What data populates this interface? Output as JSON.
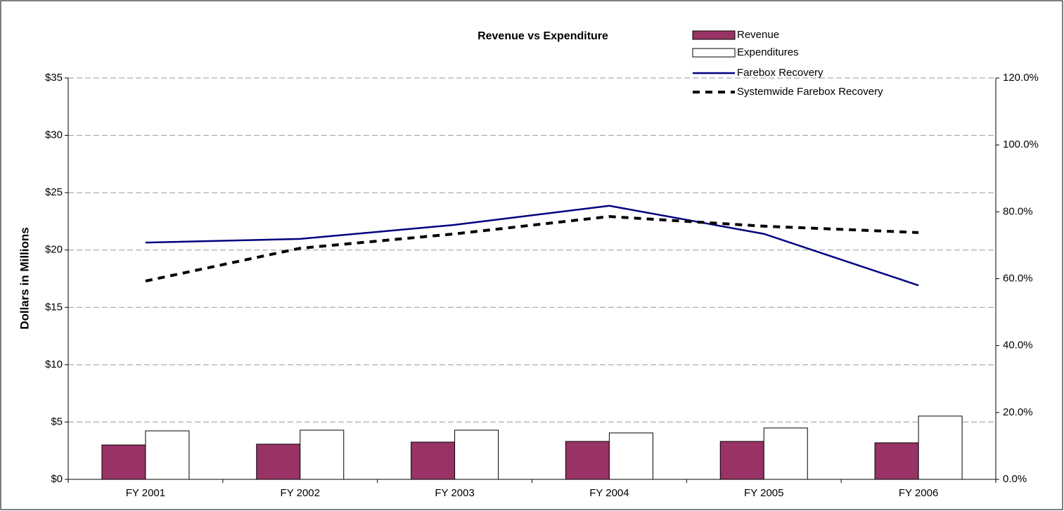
{
  "chart_data": {
    "type": "bar",
    "title": "Revenue vs Expenditure",
    "ylabel": "Dollars in Millions",
    "categories": [
      "FY 2001",
      "FY 2002",
      "FY 2003",
      "FY 2004",
      "FY 2005",
      "FY 2006"
    ],
    "series": [
      {
        "name": "Revenue",
        "type": "bar",
        "color": "#993366",
        "values": [
          3.0,
          3.07,
          3.25,
          3.31,
          3.31,
          3.19
        ]
      },
      {
        "name": "Expenditures",
        "type": "bar",
        "color": "#ffffff",
        "values": [
          4.23,
          4.29,
          4.29,
          4.05,
          4.48,
          5.52
        ]
      },
      {
        "name": "Farebox Recovery",
        "type": "line",
        "axis": "y2",
        "color": "#000080",
        "line_style": "solid",
        "values": [
          70.8,
          71.9,
          76.1,
          81.8,
          73.4,
          58.0
        ]
      },
      {
        "name": "Systemwide Farebox Recovery",
        "type": "line",
        "axis": "y2",
        "color": "#000000",
        "line_style": "dashed",
        "values": [
          59.3,
          69.1,
          73.4,
          78.6,
          75.7,
          73.8
        ]
      }
    ],
    "ylim": [
      0,
      35
    ],
    "yticks": [
      {
        "value": 0,
        "label": "$0"
      },
      {
        "value": 5,
        "label": "$5"
      },
      {
        "value": 10,
        "label": "$10"
      },
      {
        "value": 15,
        "label": "$15"
      },
      {
        "value": 20,
        "label": "$20"
      },
      {
        "value": 25,
        "label": "$25"
      },
      {
        "value": 30,
        "label": "$30"
      },
      {
        "value": 35,
        "label": "$35"
      }
    ],
    "y2lim": [
      0,
      120
    ],
    "y2ticks": [
      {
        "value": 0,
        "label": "0.0%"
      },
      {
        "value": 20,
        "label": "20.0%"
      },
      {
        "value": 40,
        "label": "40.0%"
      },
      {
        "value": 60,
        "label": "60.0%"
      },
      {
        "value": 80,
        "label": "80.0%"
      },
      {
        "value": 100,
        "label": "100.0%"
      },
      {
        "value": 120,
        "label": "120.0%"
      }
    ],
    "grid": true,
    "legend": "top-right"
  }
}
